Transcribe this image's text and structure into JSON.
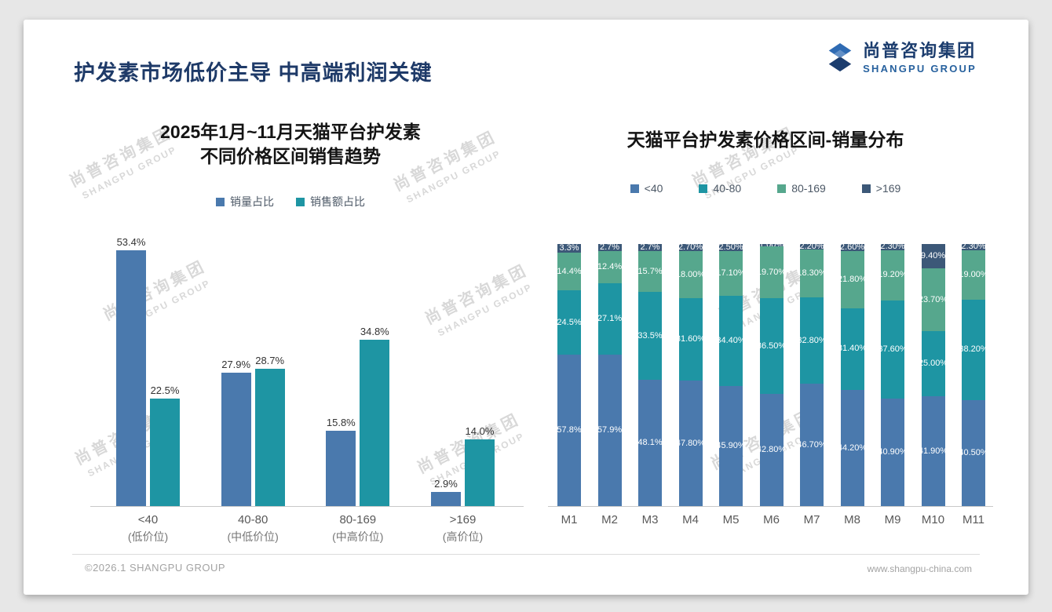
{
  "slide": {
    "main_title": "护发素市场低价主导 中高端利润关键",
    "footer_left": "©2026.1 SHANGPU GROUP",
    "footer_right": "www.shangpu-china.com"
  },
  "logo": {
    "cn": "尚普咨询集团",
    "en": "SHANGPU GROUP"
  },
  "watermark": {
    "line1": "尚普咨询集团",
    "line2": "SHANGPU GROUP"
  },
  "colors": {
    "blue": "#4a79ad",
    "teal": "#1e95a3",
    "green": "#56a78d",
    "navy": "#3c5878",
    "title_navy": "#1e3a68"
  },
  "chart_data": [
    {
      "type": "bar",
      "title_line1": "2025年1月~11月天猫平台护发素",
      "title_line2": "不同价格区间销售趋势",
      "categories": [
        "<40",
        "40-80",
        "80-169",
        ">169"
      ],
      "category_sublabels": [
        "(低价位)",
        "(中低价位)",
        "(中高价位)",
        "(高价位)"
      ],
      "series": [
        {
          "name": "销量占比",
          "color": "#4a79ad",
          "values": [
            53.4,
            27.9,
            15.8,
            2.9
          ]
        },
        {
          "name": "销售额占比",
          "color": "#1e95a3",
          "values": [
            22.5,
            28.7,
            34.8,
            14.0
          ]
        }
      ],
      "value_suffix": "%",
      "ylim": [
        0,
        56
      ],
      "grid": false,
      "legend_position": "top"
    },
    {
      "type": "bar",
      "subtype": "stacked-100",
      "title": "天猫平台护发素价格区间-销量分布",
      "categories": [
        "M1",
        "M2",
        "M3",
        "M4",
        "M5",
        "M6",
        "M7",
        "M8",
        "M9",
        "M10",
        "M11"
      ],
      "series": [
        {
          "name": "<40",
          "color": "#4a79ad",
          "values": [
            57.8,
            57.9,
            48.1,
            47.8,
            45.9,
            42.8,
            46.7,
            44.2,
            40.9,
            41.9,
            40.5
          ],
          "labels": [
            "57.8%",
            "57.9%",
            "48.1%",
            "47.80%",
            "45.90%",
            "42.80%",
            "46.70%",
            "44.20%",
            "40.90%",
            "41.90%",
            "40.50%"
          ]
        },
        {
          "name": "40-80",
          "color": "#1e95a3",
          "values": [
            24.5,
            27.1,
            33.5,
            31.6,
            34.4,
            36.5,
            32.8,
            31.4,
            37.6,
            25.0,
            38.2
          ],
          "labels": [
            "24.5%",
            "27.1%",
            "33.5%",
            "31.60%",
            "34.40%",
            "36.50%",
            "32.80%",
            "31.40%",
            "37.60%",
            "25.00%",
            "38.20%"
          ]
        },
        {
          "name": "80-169",
          "color": "#56a78d",
          "values": [
            14.4,
            12.4,
            15.7,
            18.0,
            17.1,
            19.7,
            18.3,
            21.8,
            19.2,
            23.7,
            19.0
          ],
          "labels": [
            "14.4%",
            "12.4%",
            "15.7%",
            "18.00%",
            "17.10%",
            "19.70%",
            "18.30%",
            "21.80%",
            "19.20%",
            "23.70%",
            "19.00%"
          ]
        },
        {
          "name": ">169",
          "color": "#3c5878",
          "values": [
            3.3,
            2.7,
            2.7,
            2.7,
            2.5,
            1.0,
            2.2,
            2.6,
            2.3,
            9.4,
            2.3
          ],
          "labels": [
            "3.3%",
            "2.7%",
            "2.7%",
            "2.70%",
            "2.50%",
            "1.00%",
            "2.20%",
            "2.60%",
            "2.30%",
            "9.40%",
            "2.30%"
          ]
        }
      ],
      "ylim": [
        0,
        100
      ],
      "grid": false,
      "legend_position": "top"
    }
  ]
}
